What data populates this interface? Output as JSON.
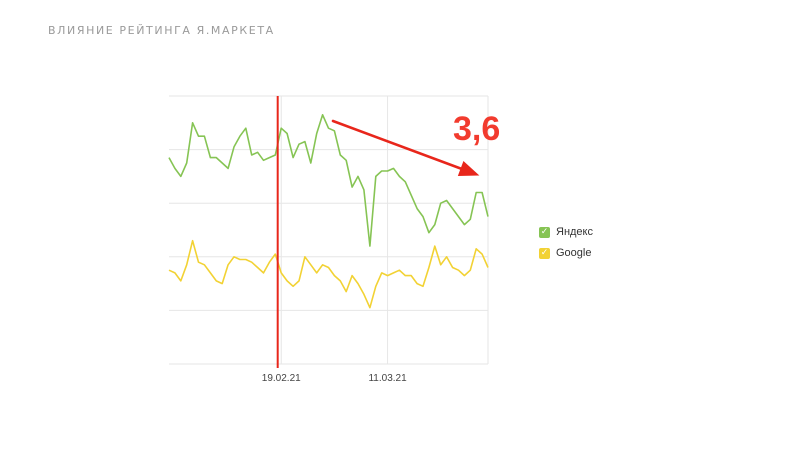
{
  "slide": {
    "title": "ВЛИЯНИЕ РЕЙТИНГА Я.МАРКЕТА"
  },
  "colors": {
    "yandex": "#86c454",
    "google": "#f2d234",
    "marker": "#e8261b",
    "arrow": "#e8261b",
    "callout": "#f23b2e",
    "grid": "#e6e6e6"
  },
  "chart_data": {
    "type": "line",
    "grid": true,
    "ylim": [
      0,
      10
    ],
    "x_ticks": [
      {
        "label": "19.02.21",
        "index": 19
      },
      {
        "label": "11.03.21",
        "index": 37
      }
    ],
    "marker_index": 18.4,
    "callout": "3,6",
    "series": [
      {
        "name": "Яндекс",
        "color_key": "yandex",
        "values": [
          7.7,
          7.3,
          7.0,
          7.5,
          9.0,
          8.5,
          8.5,
          7.7,
          7.7,
          7.5,
          7.3,
          8.1,
          8.5,
          8.8,
          7.8,
          7.9,
          7.6,
          7.7,
          7.8,
          8.8,
          8.6,
          7.7,
          8.2,
          8.3,
          7.5,
          8.6,
          9.3,
          8.8,
          8.7,
          7.8,
          7.6,
          6.6,
          7.0,
          6.5,
          4.4,
          7.0,
          7.2,
          7.2,
          7.3,
          7.0,
          6.8,
          6.3,
          5.8,
          5.5,
          4.9,
          5.2,
          6.0,
          6.1,
          5.8,
          5.5,
          5.2,
          5.4,
          6.4,
          6.4,
          5.5
        ]
      },
      {
        "name": "Google",
        "color_key": "google",
        "values": [
          3.5,
          3.4,
          3.1,
          3.7,
          4.6,
          3.8,
          3.7,
          3.4,
          3.1,
          3.0,
          3.7,
          4.0,
          3.9,
          3.9,
          3.8,
          3.6,
          3.4,
          3.8,
          4.1,
          3.4,
          3.1,
          2.9,
          3.1,
          4.0,
          3.7,
          3.4,
          3.7,
          3.6,
          3.3,
          3.1,
          2.7,
          3.3,
          3.0,
          2.6,
          2.1,
          2.9,
          3.4,
          3.3,
          3.4,
          3.5,
          3.3,
          3.3,
          3.0,
          2.9,
          3.6,
          4.4,
          3.7,
          4.0,
          3.6,
          3.5,
          3.3,
          3.5,
          4.3,
          4.1,
          3.6
        ]
      }
    ]
  }
}
